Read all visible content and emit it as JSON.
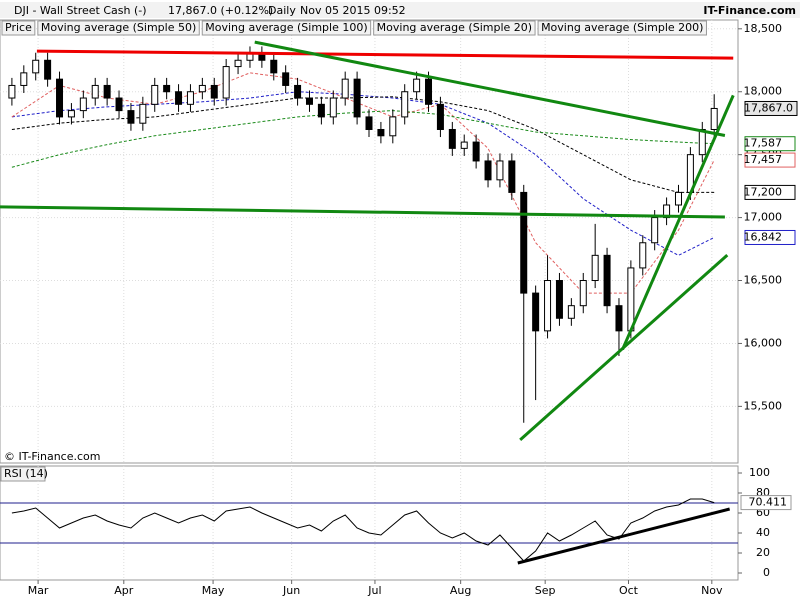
{
  "header": {
    "symbol": "DJI - Wall Street Cash (-)",
    "quote": "17,867.0 (+0.12%)",
    "period": "Daily",
    "timestamp": "Nov 05 2015 09:52",
    "brand": "IT-Finance.com"
  },
  "chart_data": [
    {
      "type": "candlestick",
      "annotation": "© IT-Finance.com",
      "xlim": [
        -1,
        61
      ],
      "ylim": [
        15050,
        18570
      ],
      "yticks": [
        {
          "value": 15500,
          "label": "15,500"
        },
        {
          "value": 16000,
          "label": "16,000"
        },
        {
          "value": 16500,
          "label": "16,500"
        },
        {
          "value": 17000,
          "label": "17,000"
        },
        {
          "value": 17500,
          "label": "17,500"
        },
        {
          "value": 18000,
          "label": "18,000"
        },
        {
          "value": 18500,
          "label": "18,500"
        }
      ],
      "grid": true,
      "candles": {
        "name": "Price",
        "last_label": "17,867.0",
        "open": [
          17950,
          18050,
          18150,
          18250,
          18100,
          17800,
          17850,
          17950,
          18050,
          17950,
          17850,
          17750,
          17900,
          18050,
          18000,
          17900,
          18000,
          18050,
          17950,
          18200,
          18250,
          18300,
          18250,
          18150,
          18050,
          17950,
          17900,
          17800,
          17950,
          18100,
          17800,
          17700,
          17650,
          17800,
          18000,
          18100,
          17900,
          17700,
          17550,
          17600,
          17450,
          17300,
          17450,
          17200,
          16400,
          16100,
          16500,
          16200,
          16300,
          16500,
          16700,
          16300,
          16100,
          16600,
          16800,
          17000,
          17100,
          17200,
          17500,
          17700
        ],
        "high": [
          18110,
          18210,
          18310,
          18310,
          18160,
          17910,
          18010,
          18110,
          18110,
          18010,
          17910,
          17960,
          18110,
          18110,
          18060,
          18060,
          18110,
          18110,
          18260,
          18310,
          18360,
          18360,
          18310,
          18210,
          18110,
          18010,
          17960,
          18010,
          18160,
          18160,
          17860,
          17760,
          17860,
          18060,
          18160,
          18160,
          17960,
          17760,
          17660,
          17660,
          17510,
          17510,
          17510,
          17260,
          16460,
          16700,
          16560,
          16360,
          16560,
          16950,
          16760,
          16360,
          16660,
          16860,
          17060,
          17160,
          17260,
          17560,
          17760,
          17980
        ],
        "low": [
          17890,
          17990,
          18090,
          18040,
          17740,
          17740,
          17790,
          17890,
          17890,
          17790,
          17690,
          17690,
          17840,
          17940,
          17840,
          17840,
          17940,
          17890,
          17890,
          18140,
          18190,
          18190,
          18090,
          17990,
          17890,
          17840,
          17740,
          17740,
          17890,
          17740,
          17640,
          17590,
          17590,
          17740,
          17940,
          17840,
          17640,
          17490,
          17490,
          17390,
          17240,
          17240,
          17140,
          15370,
          15550,
          16040,
          16140,
          16140,
          16240,
          16440,
          16240,
          15900,
          16040,
          16540,
          16740,
          16940,
          17040,
          17140,
          17440,
          17640
        ],
        "close": [
          18050,
          18150,
          18250,
          18100,
          17800,
          17850,
          17950,
          18050,
          17950,
          17850,
          17750,
          17900,
          18050,
          18000,
          17900,
          18000,
          18050,
          17950,
          18200,
          18250,
          18300,
          18250,
          18150,
          18050,
          17950,
          17900,
          17800,
          17950,
          18100,
          17800,
          17700,
          17650,
          17800,
          18000,
          18100,
          17900,
          17700,
          17550,
          17600,
          17450,
          17300,
          17450,
          17200,
          16400,
          16100,
          16500,
          16200,
          16300,
          16500,
          16700,
          16300,
          16100,
          16600,
          16800,
          17000,
          17100,
          17200,
          17500,
          17700,
          17867
        ]
      },
      "series": [
        {
          "name": "Moving average (Simple 50)",
          "color": "#1f1fc8",
          "last_label": "16,842",
          "x": [
            0,
            4,
            8,
            12,
            16,
            20,
            24,
            28,
            32,
            36,
            40,
            44,
            48,
            52,
            56,
            59
          ],
          "values": [
            17800,
            17850,
            17880,
            17900,
            17920,
            17950,
            18000,
            17980,
            17950,
            17900,
            17750,
            17500,
            17150,
            16900,
            16700,
            16842
          ]
        },
        {
          "name": "Moving average (Simple 100)",
          "color": "#000000",
          "last_label": "17,200",
          "x": [
            0,
            4,
            8,
            12,
            16,
            20,
            24,
            28,
            32,
            36,
            40,
            44,
            48,
            52,
            56,
            59
          ],
          "values": [
            17700,
            17750,
            17780,
            17800,
            17850,
            17900,
            17950,
            17950,
            17960,
            17920,
            17850,
            17700,
            17500,
            17300,
            17200,
            17200
          ]
        },
        {
          "name": "Moving average (Simple 20)",
          "color": "#e06060",
          "last_label": "17,457",
          "x": [
            0,
            4,
            8,
            12,
            16,
            20,
            24,
            28,
            32,
            36,
            40,
            44,
            48,
            52,
            56,
            59
          ],
          "values": [
            17800,
            18050,
            17950,
            17900,
            18000,
            18150,
            18100,
            17950,
            17800,
            17900,
            17550,
            16800,
            16400,
            16400,
            16900,
            17457
          ]
        },
        {
          "name": "Moving average (Simple 200)",
          "color": "#1a8a1a",
          "last_label": "17,587",
          "x": [
            0,
            4,
            8,
            12,
            16,
            20,
            24,
            28,
            32,
            36,
            40,
            44,
            48,
            52,
            56,
            59
          ],
          "values": [
            17400,
            17500,
            17580,
            17650,
            17700,
            17750,
            17800,
            17830,
            17850,
            17820,
            17750,
            17680,
            17650,
            17620,
            17600,
            17587
          ]
        }
      ],
      "trendlines": [
        {
          "color": "#ee0000",
          "x": [
            2.1,
            60.6
          ],
          "values": [
            18323,
            18267
          ]
        },
        {
          "color": "#118811",
          "x": [
            20.4,
            59.9
          ],
          "values": [
            18394,
            17652
          ]
        },
        {
          "color": "#118811",
          "x": [
            -1,
            59.9
          ],
          "values": [
            17085,
            17005
          ]
        },
        {
          "color": "#118811",
          "x": [
            42.7,
            60.1
          ],
          "values": [
            15234,
            16702
          ]
        },
        {
          "color": "#118811",
          "x": [
            51.3,
            60.6
          ],
          "values": [
            15952,
            17971
          ]
        }
      ]
    },
    {
      "type": "line",
      "name": "RSI (14)",
      "color": "#000000",
      "xlim": [
        -1,
        61
      ],
      "ylim": [
        -7,
        107
      ],
      "xticks": [
        {
          "value": 2.2,
          "label": "Mar"
        },
        {
          "value": 9.4,
          "label": "Apr"
        },
        {
          "value": 16.9,
          "label": "May"
        },
        {
          "value": 23.5,
          "label": "Jun"
        },
        {
          "value": 30.5,
          "label": "Jul"
        },
        {
          "value": 37.7,
          "label": "Aug"
        },
        {
          "value": 44.8,
          "label": "Sep"
        },
        {
          "value": 51.8,
          "label": "Oct"
        },
        {
          "value": 58.8,
          "label": "Nov"
        }
      ],
      "yticks": [
        0,
        20,
        40,
        60,
        80,
        100
      ],
      "levels": [
        30,
        70
      ],
      "level_color": "#1f1f8c",
      "values": [
        60,
        62,
        65,
        55,
        45,
        50,
        55,
        58,
        52,
        48,
        45,
        55,
        60,
        55,
        50,
        55,
        58,
        52,
        62,
        64,
        66,
        60,
        55,
        50,
        45,
        48,
        42,
        52,
        58,
        45,
        40,
        38,
        48,
        58,
        62,
        50,
        40,
        35,
        40,
        32,
        28,
        38,
        25,
        12,
        22,
        40,
        32,
        38,
        45,
        52,
        38,
        34,
        50,
        55,
        62,
        66,
        68,
        74,
        74,
        70.411
      ],
      "trendlines": [
        {
          "color": "#000000",
          "x": [
            42.5,
            60.3
          ],
          "values": [
            10,
            64
          ]
        }
      ]
    }
  ]
}
